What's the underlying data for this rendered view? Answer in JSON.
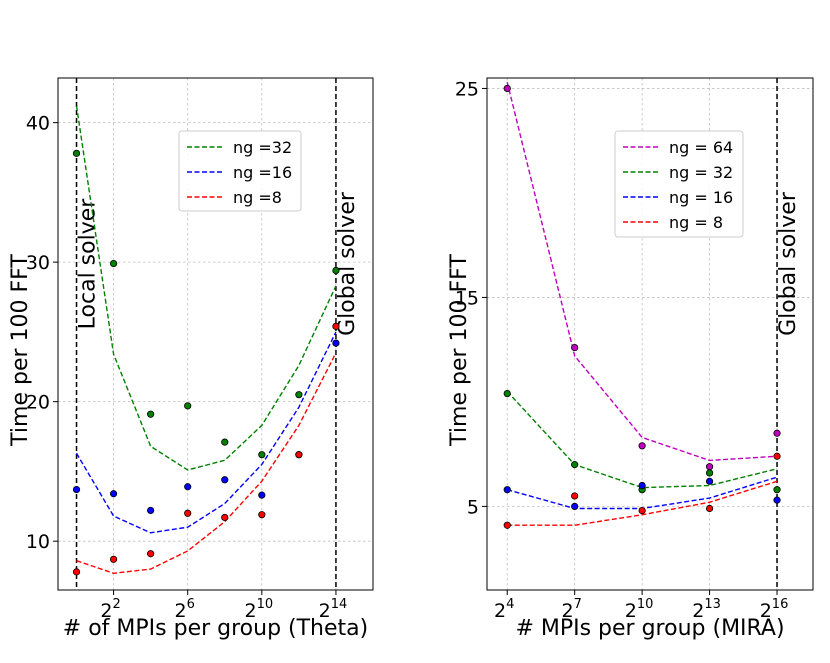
{
  "chart_data": [
    {
      "type": "line",
      "x": [
        0,
        2,
        4,
        6,
        8,
        10,
        12,
        14
      ],
      "xticks": [
        2,
        6,
        10,
        14
      ],
      "xtick_base": "2",
      "yticks": [
        10,
        20,
        30,
        40
      ],
      "xlim": [
        -1,
        16
      ],
      "ylim": [
        6.5,
        43.2
      ],
      "xlabel": "# of MPIs per group (Theta)",
      "ylabel": "Time per 100 FFT",
      "grid": true,
      "legend_position": "upper-center",
      "vlines": [
        {
          "x": 0,
          "label": "Local solver",
          "side": "right"
        },
        {
          "x": 14,
          "label": "Global solver",
          "side": "right"
        }
      ],
      "series": [
        {
          "name": "ng =32",
          "color": "#008000",
          "line": [
            41.2,
            23.4,
            16.8,
            15.1,
            15.8,
            18.3,
            22.6,
            28.3
          ],
          "points": [
            37.8,
            29.9,
            19.1,
            19.7,
            17.1,
            16.2,
            20.5,
            29.4
          ]
        },
        {
          "name": "ng =16",
          "color": "#0000ff",
          "line": [
            16.3,
            11.8,
            10.6,
            11.0,
            12.7,
            15.5,
            19.6,
            25.0
          ],
          "points": [
            13.7,
            13.4,
            12.2,
            13.9,
            14.4,
            13.3,
            16.2,
            24.2
          ]
        },
        {
          "name": "ng =8",
          "color": "#ff0000",
          "line": [
            8.6,
            7.7,
            8.0,
            9.3,
            11.4,
            14.3,
            18.3,
            23.5
          ],
          "points": [
            7.8,
            8.7,
            9.1,
            12.0,
            11.7,
            11.9,
            16.2,
            25.4
          ]
        }
      ]
    },
    {
      "type": "line",
      "x": [
        4,
        7,
        10,
        13,
        16
      ],
      "xticks": [
        4,
        7,
        10,
        13,
        16
      ],
      "xtick_base": "2",
      "yticks": [
        5,
        15,
        25
      ],
      "xlim": [
        3.1,
        17.6
      ],
      "ylim": [
        1,
        25.5
      ],
      "xlabel": "# MPIs per group (MIRA)",
      "ylabel": "Time per 100 FFT",
      "grid": true,
      "legend_position": "upper-center",
      "vlines": [
        {
          "x": 16,
          "label": "Global solver",
          "side": "right"
        }
      ],
      "series": [
        {
          "name": "ng = 64",
          "color": "#bf00bf",
          "line": [
            25.3,
            12.2,
            8.3,
            7.2,
            7.4
          ],
          "points": [
            25.0,
            12.6,
            7.9,
            6.9,
            8.5
          ]
        },
        {
          "name": "ng = 32",
          "color": "#008000",
          "line": [
            10.5,
            7.0,
            5.9,
            6.0,
            6.8
          ],
          "points": [
            10.4,
            7.0,
            5.8,
            6.6,
            5.8
          ]
        },
        {
          "name": "ng = 16",
          "color": "#0000ff",
          "line": [
            5.8,
            4.9,
            4.9,
            5.4,
            6.4
          ],
          "points": [
            5.8,
            5.0,
            6.0,
            6.2,
            5.3
          ]
        },
        {
          "name": "ng = 8",
          "color": "#ff0000",
          "line": [
            4.1,
            4.1,
            4.6,
            5.2,
            6.2
          ],
          "points": [
            4.1,
            5.5,
            4.8,
            4.9,
            7.4
          ]
        }
      ]
    }
  ]
}
